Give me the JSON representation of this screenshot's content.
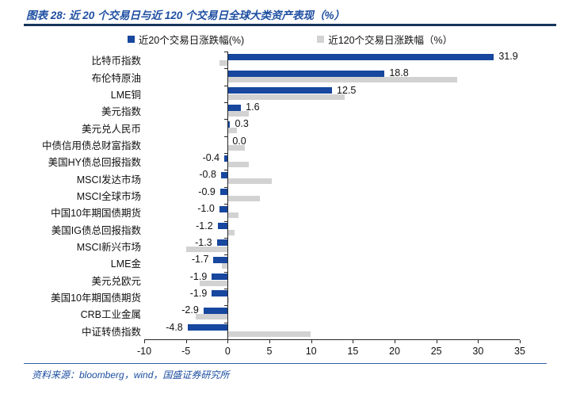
{
  "header": {
    "title": "图表 28: 近 20 个交易日与近 120 个交易日全球大类资产表现（%）"
  },
  "legend": {
    "items": [
      {
        "label": "近20个交易日涨跌幅(%)",
        "color": "#17479e"
      },
      {
        "label": "近120个交易日涨跌幅（%）",
        "color": "#d2d2d2"
      }
    ]
  },
  "footer": {
    "source": "资料来源：bloomberg，wind，国盛证券研究所"
  },
  "chart_data": {
    "type": "bar",
    "orientation": "horizontal",
    "title": "近 20 个交易日与近 120 个交易日全球大类资产表现（%）",
    "categories": [
      "比特币指数",
      "布伦特原油",
      "LME铜",
      "美元指数",
      "美元兑人民币",
      "中债信用债总财富指数",
      "美国HY债总回报指数",
      "MSCI发达市场",
      "MSCI全球市场",
      "中国10年期国债期货",
      "美国IG债总回报指数",
      "MSCI新兴市场",
      "LME金",
      "美元兑欧元",
      "美国10年期国债期货",
      "CRB工业金属",
      "中证转债指数"
    ],
    "series": [
      {
        "name": "近20个交易日涨跌幅(%)",
        "color": "#17479e",
        "labels_shown": true,
        "values": [
          31.9,
          18.8,
          12.5,
          1.6,
          0.3,
          0.0,
          -0.4,
          -0.8,
          -0.9,
          -1.0,
          -1.2,
          -1.3,
          -1.7,
          -1.9,
          -1.9,
          -2.9,
          -4.8
        ]
      },
      {
        "name": "近120个交易日涨跌幅（%）",
        "color": "#d2d2d2",
        "labels_shown": false,
        "values": [
          -1.0,
          27.5,
          14.0,
          2.5,
          1.1,
          2.1,
          2.5,
          5.3,
          3.9,
          1.3,
          0.8,
          -5.0,
          -0.7,
          -3.4,
          0.2,
          -3.8,
          9.9
        ]
      }
    ],
    "xlim": [
      -10,
      35
    ],
    "xticks": [
      -10,
      -5,
      0,
      5,
      10,
      15,
      20,
      25,
      30,
      35
    ],
    "grid": false,
    "legend_position": "top"
  }
}
